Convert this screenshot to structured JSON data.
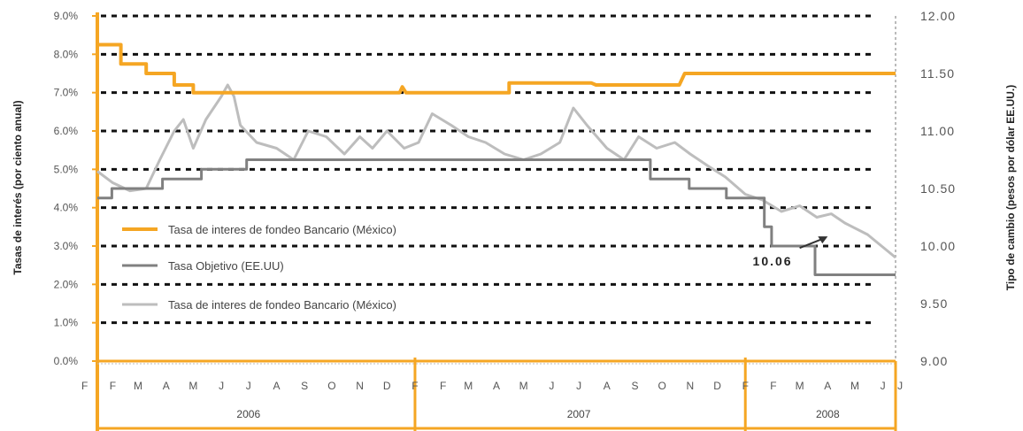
{
  "chart_data": {
    "type": "line",
    "ylabel_left": "Tasas de interés (por ciento anual)",
    "ylabel_right": "Tipo de cambio (pesos por dólar EE.UU.)",
    "ylim_left": [
      0,
      9
    ],
    "ylim_right": [
      9,
      12
    ],
    "yticks_left": [
      "0.0%",
      "1.0%",
      "2.0%",
      "3.0%",
      "4.0%",
      "5.0%",
      "6.0%",
      "7.0%",
      "8.0%",
      "9.0%"
    ],
    "yticks_right": [
      "9.00",
      "9.50",
      "10.00",
      "10.50",
      "11.00",
      "11.50",
      "12.00"
    ],
    "xlim": [
      "2006-01-15",
      "2008-06-15"
    ],
    "grid": "horizontal dotted",
    "legend_position": "middle-left",
    "month_labels": [
      [
        "2006-01",
        "F"
      ],
      [
        "2006-02",
        "F"
      ],
      [
        "2006-03",
        "M"
      ],
      [
        "2006-04",
        "A"
      ],
      [
        "2006-05",
        "M"
      ],
      [
        "2006-06",
        "J"
      ],
      [
        "2006-07",
        "J"
      ],
      [
        "2006-08",
        "A"
      ],
      [
        "2006-09",
        "S"
      ],
      [
        "2006-10",
        "O"
      ],
      [
        "2006-11",
        "N"
      ],
      [
        "2006-12",
        "D"
      ],
      [
        "2007-01",
        "F"
      ],
      [
        "2007-02",
        "F"
      ],
      [
        "2007-03",
        "M"
      ],
      [
        "2007-04",
        "A"
      ],
      [
        "2007-05",
        "M"
      ],
      [
        "2007-06",
        "J"
      ],
      [
        "2007-07",
        "J"
      ],
      [
        "2007-08",
        "A"
      ],
      [
        "2007-09",
        "S"
      ],
      [
        "2007-10",
        "O"
      ],
      [
        "2007-11",
        "N"
      ],
      [
        "2007-12",
        "D"
      ],
      [
        "2008-01",
        "F"
      ],
      [
        "2008-02",
        "F"
      ],
      [
        "2008-03",
        "M"
      ],
      [
        "2008-04",
        "A"
      ],
      [
        "2008-05",
        "M"
      ],
      [
        "2008-06",
        "J"
      ],
      [
        "2008-06-20",
        "J"
      ]
    ],
    "year_labels": [
      [
        "2006-07-01",
        "2006"
      ],
      [
        "2007-07-01",
        "2007"
      ],
      [
        "2008-04-01",
        "2008"
      ]
    ],
    "year_dividers": [
      "2007-01-01",
      "2008-01-01"
    ],
    "series": [
      {
        "name": "Tasa de interes de fondeo Bancario (México)",
        "axis": "left",
        "color": "#f5a623",
        "points": [
          [
            "2006-01-15",
            8.25
          ],
          [
            "2006-02-10",
            8.25
          ],
          [
            "2006-02-10",
            7.75
          ],
          [
            "2006-03-10",
            7.75
          ],
          [
            "2006-03-10",
            7.5
          ],
          [
            "2006-04-10",
            7.5
          ],
          [
            "2006-04-10",
            7.2
          ],
          [
            "2006-05-01",
            7.2
          ],
          [
            "2006-05-01",
            7.0
          ],
          [
            "2006-12-15",
            7.0
          ],
          [
            "2006-12-18",
            7.15
          ],
          [
            "2006-12-22",
            7.0
          ],
          [
            "2007-04-15",
            7.0
          ],
          [
            "2007-04-15",
            7.25
          ],
          [
            "2007-07-15",
            7.25
          ],
          [
            "2007-07-20",
            7.2
          ],
          [
            "2007-09-15",
            7.2
          ],
          [
            "2007-10-20",
            7.2
          ],
          [
            "2007-10-26",
            7.5
          ],
          [
            "2008-06-15",
            7.5
          ]
        ]
      },
      {
        "name": "Tasa Objetivo (EE.UU)",
        "axis": "left",
        "color": "#808080",
        "points": [
          [
            "2006-01-15",
            4.25
          ],
          [
            "2006-01-31",
            4.25
          ],
          [
            "2006-01-31",
            4.5
          ],
          [
            "2006-03-28",
            4.5
          ],
          [
            "2006-03-28",
            4.75
          ],
          [
            "2006-05-10",
            4.75
          ],
          [
            "2006-05-10",
            5.0
          ],
          [
            "2006-06-29",
            5.0
          ],
          [
            "2006-06-29",
            5.25
          ],
          [
            "2007-09-18",
            5.25
          ],
          [
            "2007-09-18",
            4.75
          ],
          [
            "2007-10-31",
            4.75
          ],
          [
            "2007-10-31",
            4.5
          ],
          [
            "2007-12-11",
            4.5
          ],
          [
            "2007-12-11",
            4.25
          ],
          [
            "2008-01-22",
            4.25
          ],
          [
            "2008-01-22",
            3.5
          ],
          [
            "2008-01-30",
            3.5
          ],
          [
            "2008-01-30",
            3.0
          ],
          [
            "2008-03-18",
            3.0
          ],
          [
            "2008-03-18",
            2.25
          ],
          [
            "2008-06-15",
            2.25
          ]
        ]
      },
      {
        "name": "Tasa de interes de fondeo Bancario (México)",
        "axis": "right",
        "color": "#bdbdbd",
        "points": [
          [
            "2006-01-15",
            10.65
          ],
          [
            "2006-02-01",
            10.55
          ],
          [
            "2006-02-20",
            10.48
          ],
          [
            "2006-03-10",
            10.5
          ],
          [
            "2006-03-25",
            10.75
          ],
          [
            "2006-04-10",
            11.0
          ],
          [
            "2006-04-20",
            11.1
          ],
          [
            "2006-05-01",
            10.85
          ],
          [
            "2006-05-15",
            11.1
          ],
          [
            "2006-06-01",
            11.3
          ],
          [
            "2006-06-08",
            11.4
          ],
          [
            "2006-06-15",
            11.3
          ],
          [
            "2006-06-22",
            11.05
          ],
          [
            "2006-07-10",
            10.9
          ],
          [
            "2006-08-01",
            10.85
          ],
          [
            "2006-08-20",
            10.75
          ],
          [
            "2006-09-05",
            11.0
          ],
          [
            "2006-09-25",
            10.95
          ],
          [
            "2006-10-15",
            10.8
          ],
          [
            "2006-11-01",
            10.95
          ],
          [
            "2006-11-15",
            10.85
          ],
          [
            "2006-12-01",
            11.0
          ],
          [
            "2006-12-20",
            10.85
          ],
          [
            "2007-01-05",
            10.9
          ],
          [
            "2007-01-20",
            11.15
          ],
          [
            "2007-02-10",
            11.05
          ],
          [
            "2007-03-01",
            10.95
          ],
          [
            "2007-03-20",
            10.9
          ],
          [
            "2007-04-10",
            10.8
          ],
          [
            "2007-05-01",
            10.75
          ],
          [
            "2007-05-20",
            10.8
          ],
          [
            "2007-06-10",
            10.9
          ],
          [
            "2007-06-25",
            11.2
          ],
          [
            "2007-07-10",
            11.05
          ],
          [
            "2007-08-01",
            10.85
          ],
          [
            "2007-08-20",
            10.75
          ],
          [
            "2007-09-05",
            10.95
          ],
          [
            "2007-09-25",
            10.85
          ],
          [
            "2007-10-15",
            10.9
          ],
          [
            "2007-11-01",
            10.8
          ],
          [
            "2007-11-20",
            10.7
          ],
          [
            "2007-12-10",
            10.6
          ],
          [
            "2008-01-01",
            10.45
          ],
          [
            "2008-01-20",
            10.4
          ],
          [
            "2008-02-10",
            10.3
          ],
          [
            "2008-03-01",
            10.35
          ],
          [
            "2008-03-20",
            10.25
          ],
          [
            "2008-04-05",
            10.28
          ],
          [
            "2008-04-20",
            10.2
          ],
          [
            "2008-05-15",
            10.1
          ],
          [
            "2008-06-15",
            9.9
          ]
        ]
      }
    ],
    "annotations": [
      {
        "text": "10.06",
        "arrow_from": [
          "2008-03-01",
          2.95
        ],
        "arrow_to": [
          "2008-04-01",
          3.25
        ]
      }
    ]
  }
}
